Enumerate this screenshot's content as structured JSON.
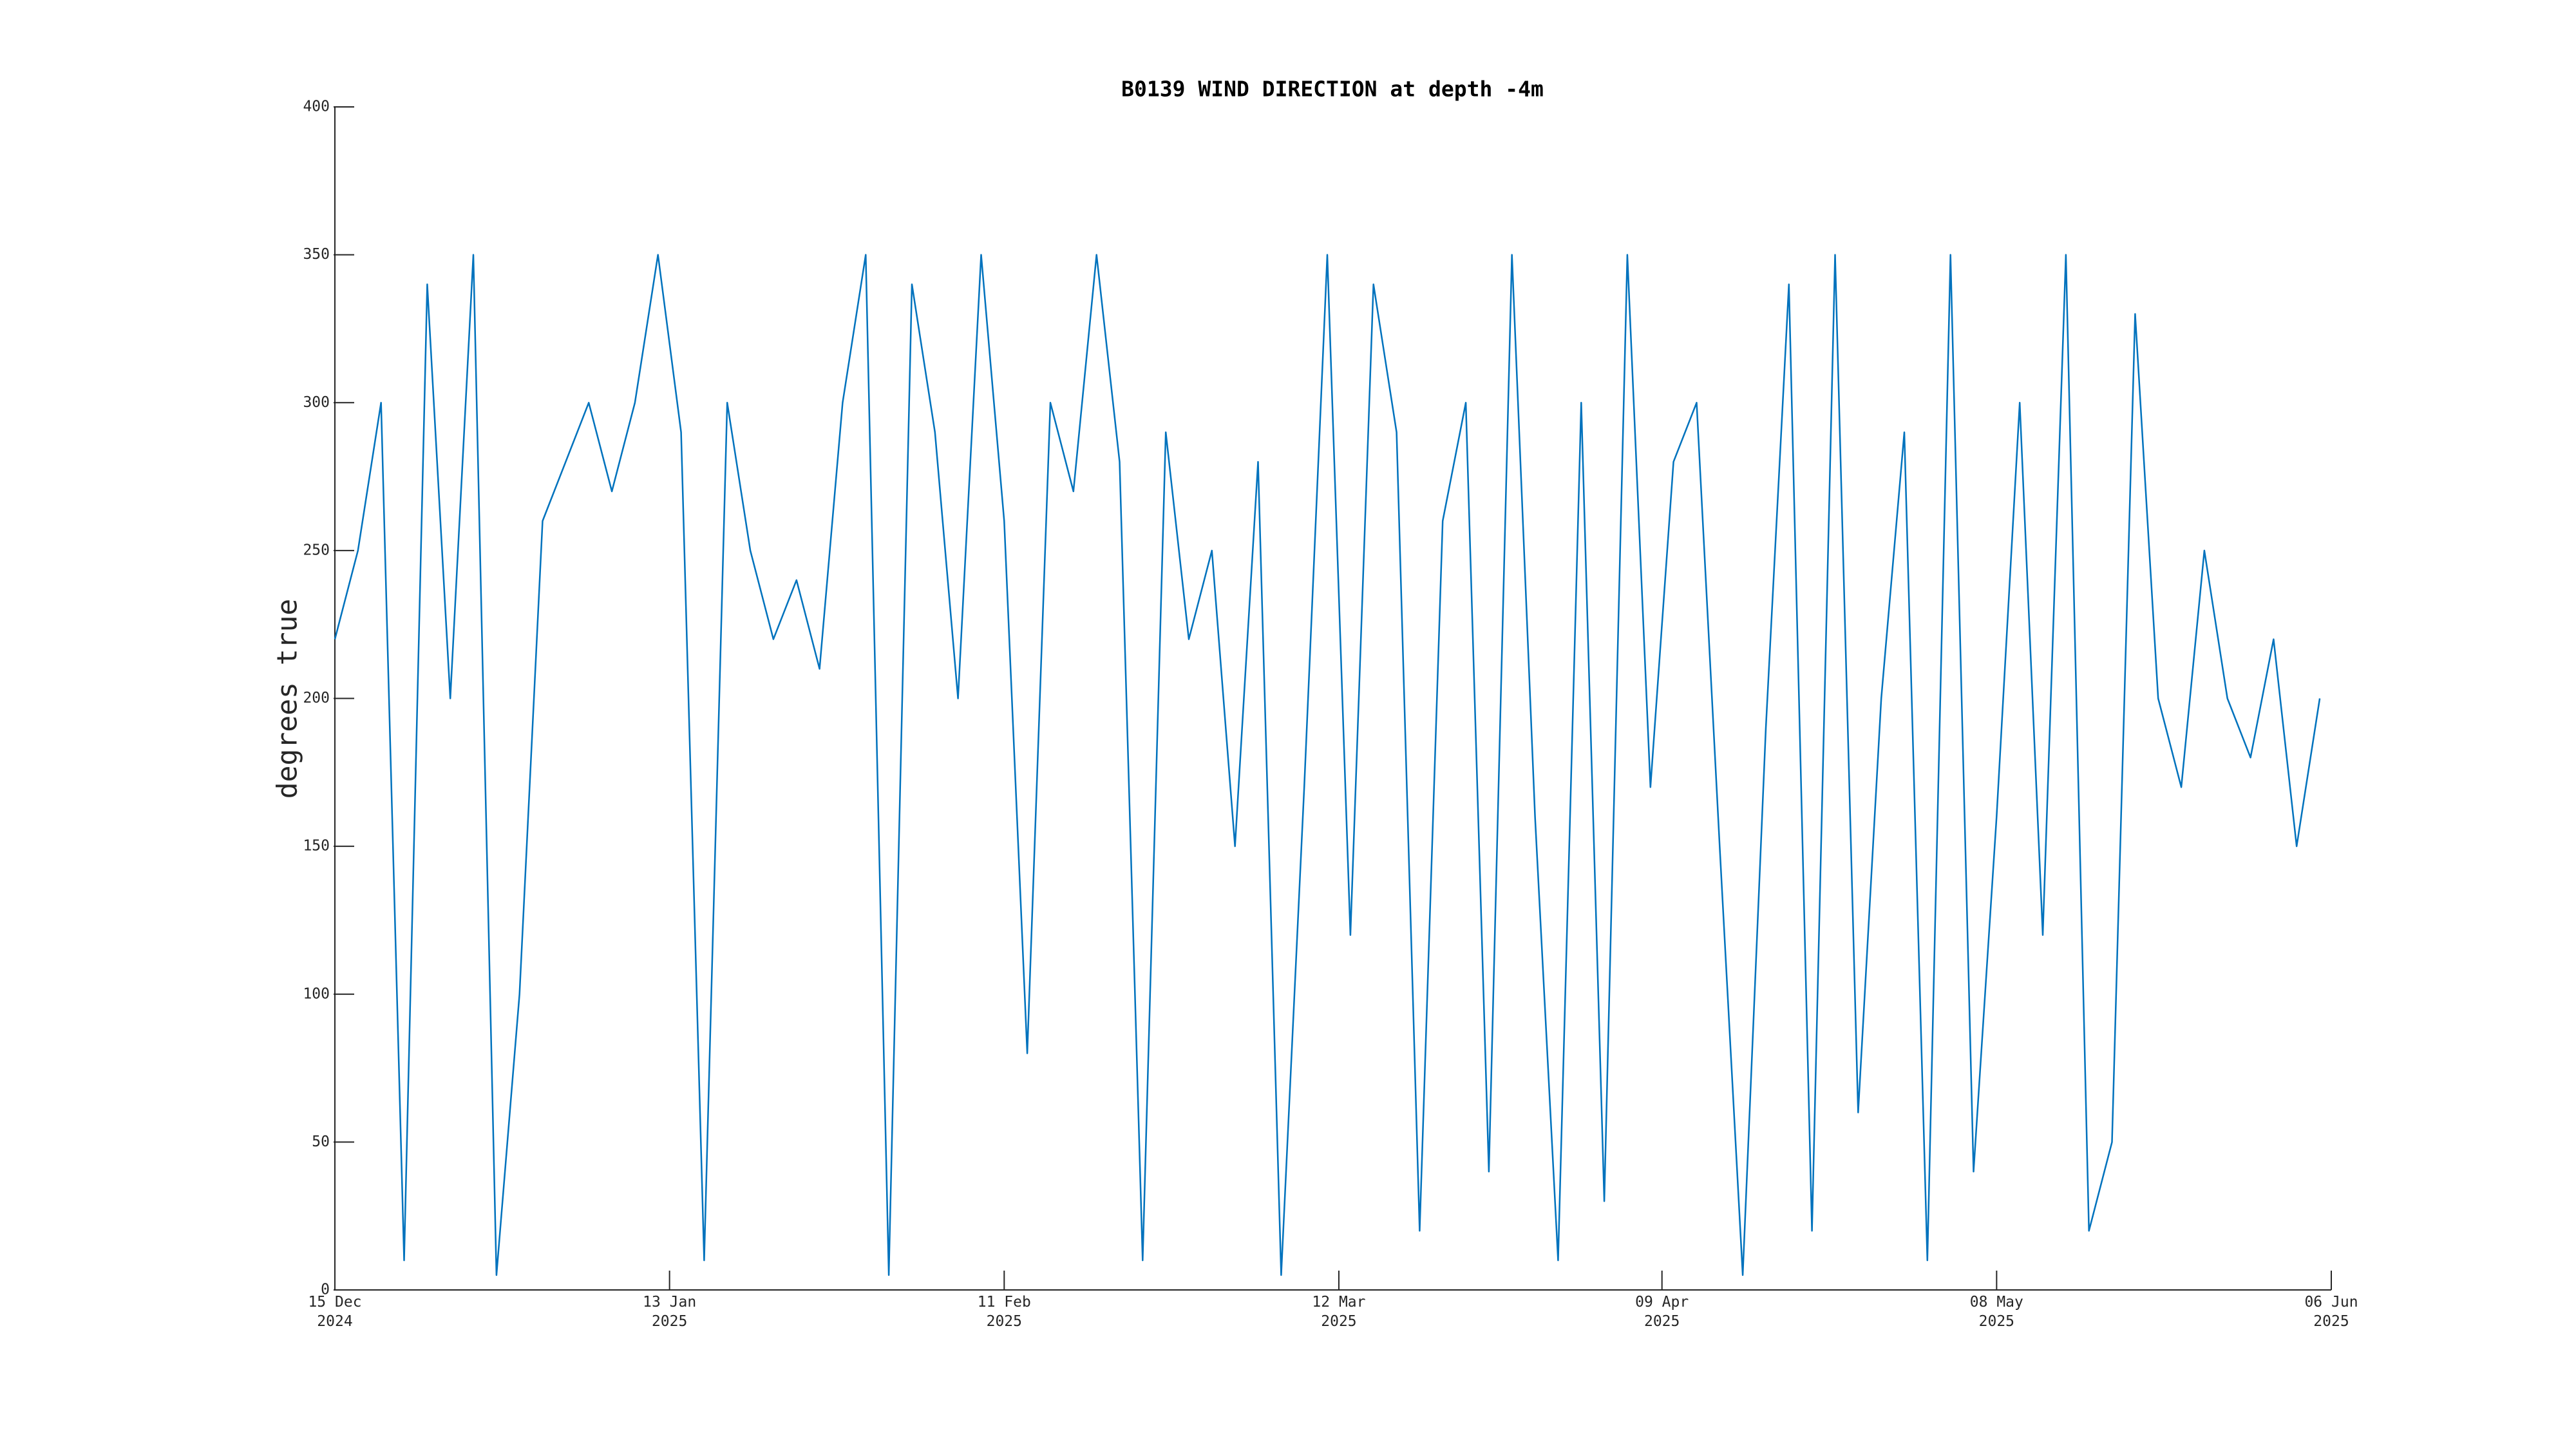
{
  "chart_data": {
    "type": "line",
    "title": "B0139 WIND DIRECTION at depth -4m",
    "y_label": "degrees true",
    "x": [
      "2024-12-15",
      "2024-12-17",
      "2024-12-19",
      "2024-12-21",
      "2024-12-23",
      "2024-12-25",
      "2024-12-27",
      "2024-12-29",
      "2024-12-31",
      "2025-01-02",
      "2025-01-04",
      "2025-01-06",
      "2025-01-08",
      "2025-01-10",
      "2025-01-12",
      "2025-01-14",
      "2025-01-16",
      "2025-01-18",
      "2025-01-20",
      "2025-01-22",
      "2025-01-24",
      "2025-01-26",
      "2025-01-28",
      "2025-01-30",
      "2025-02-01",
      "2025-02-03",
      "2025-02-05",
      "2025-02-07",
      "2025-02-09",
      "2025-02-11",
      "2025-02-13",
      "2025-02-15",
      "2025-02-17",
      "2025-02-19",
      "2025-02-21",
      "2025-02-23",
      "2025-02-25",
      "2025-02-27",
      "2025-03-01",
      "2025-03-03",
      "2025-03-05",
      "2025-03-07",
      "2025-03-09",
      "2025-03-11",
      "2025-03-13",
      "2025-03-15",
      "2025-03-17",
      "2025-03-19",
      "2025-03-21",
      "2025-03-23",
      "2025-03-25",
      "2025-03-27",
      "2025-03-29",
      "2025-03-31",
      "2025-04-02",
      "2025-04-04",
      "2025-04-06",
      "2025-04-08",
      "2025-04-10",
      "2025-04-12",
      "2025-04-14",
      "2025-04-16",
      "2025-04-18",
      "2025-04-20",
      "2025-04-22",
      "2025-04-24",
      "2025-04-26",
      "2025-04-28",
      "2025-04-30",
      "2025-05-02",
      "2025-05-04",
      "2025-05-06",
      "2025-05-08",
      "2025-05-10",
      "2025-05-12",
      "2025-05-14",
      "2025-05-16",
      "2025-05-18",
      "2025-05-20",
      "2025-05-22",
      "2025-05-24",
      "2025-05-26",
      "2025-05-28",
      "2025-05-30",
      "2025-06-01",
      "2025-06-03",
      "2025-06-05"
    ],
    "series": [
      {
        "name": "wind direction",
        "color": "#0072bd",
        "values": [
          220,
          250,
          300,
          10,
          340,
          200,
          350,
          5,
          100,
          260,
          280,
          300,
          270,
          300,
          350,
          290,
          10,
          300,
          250,
          220,
          240,
          210,
          300,
          350,
          5,
          340,
          290,
          200,
          350,
          260,
          80,
          300,
          270,
          350,
          280,
          10,
          290,
          220,
          250,
          150,
          280,
          5,
          170,
          350,
          120,
          340,
          290,
          20,
          260,
          300,
          40,
          350,
          160,
          10,
          300,
          30,
          350,
          170,
          280,
          300,
          150,
          5,
          190,
          340,
          20,
          350,
          60,
          200,
          290,
          10,
          350,
          40,
          160,
          300,
          120,
          350,
          20,
          50,
          330,
          200,
          170,
          250,
          200,
          180,
          220,
          150,
          200
        ]
      }
    ],
    "xlim": [
      "2024-12-15",
      "2025-06-06"
    ],
    "xticks": [
      {
        "value": "2024-12-15",
        "label": "15 Dec\n2024"
      },
      {
        "value": "2025-01-13",
        "label": "13 Jan\n2025"
      },
      {
        "value": "2025-02-11",
        "label": "11 Feb\n2025"
      },
      {
        "value": "2025-03-12",
        "label": "12 Mar\n2025"
      },
      {
        "value": "2025-04-09",
        "label": "09 Apr\n2025"
      },
      {
        "value": "2025-05-08",
        "label": "08 May\n2025"
      },
      {
        "value": "2025-06-06",
        "label": "06 Jun\n2025"
      }
    ],
    "ylim": [
      0,
      400
    ],
    "yticks": [
      0,
      50,
      100,
      150,
      200,
      250,
      300,
      350,
      400
    ],
    "grid": false
  }
}
